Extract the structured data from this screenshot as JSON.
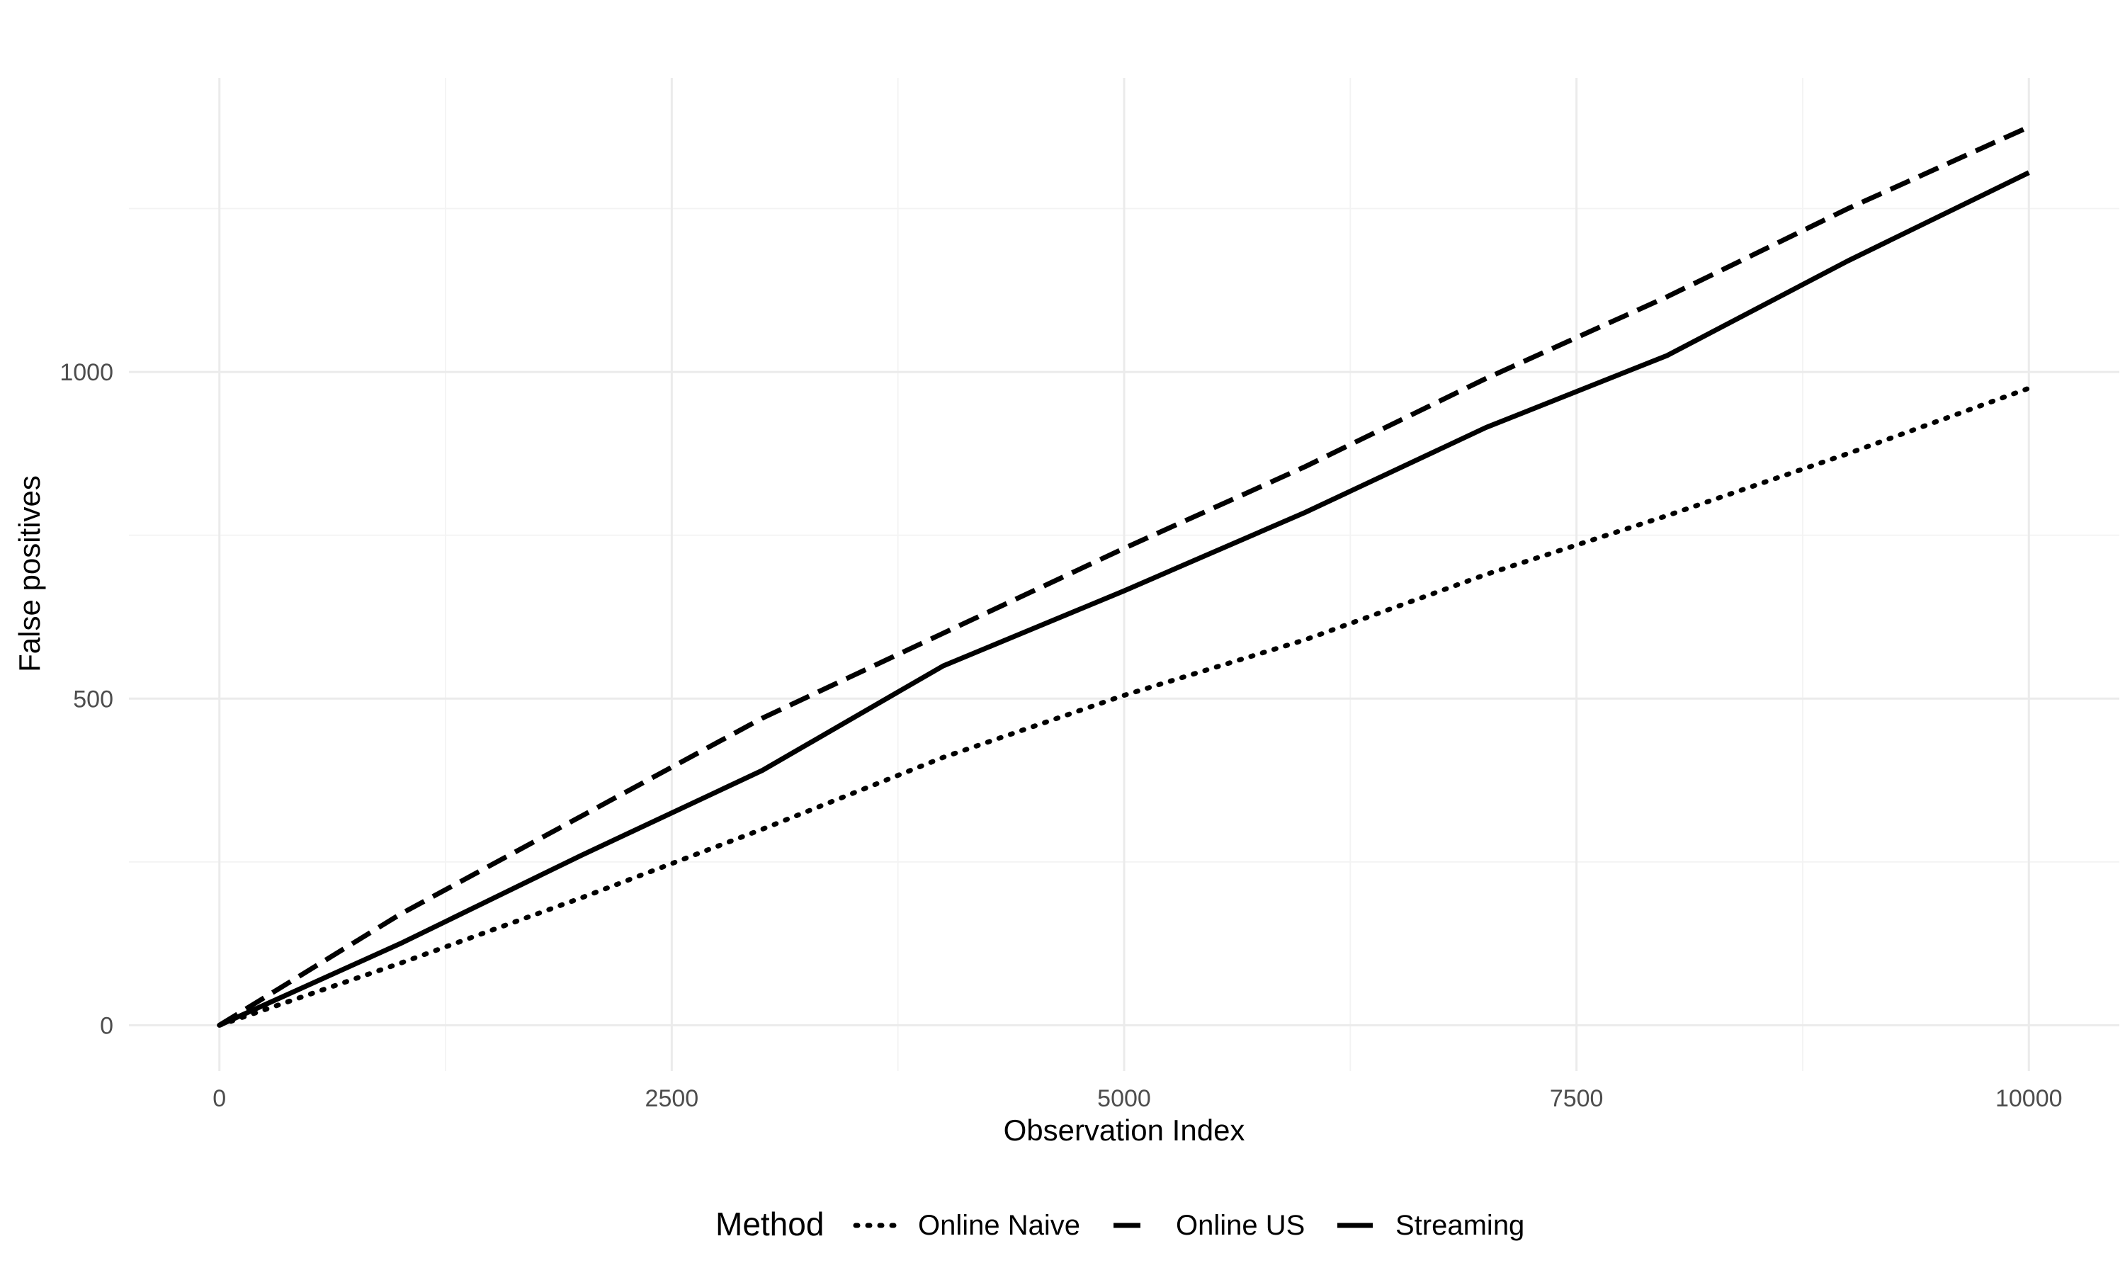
{
  "chart_data": {
    "type": "line",
    "title": "",
    "xlabel": "Observation Index",
    "ylabel": "False positives",
    "xlim": [
      -500,
      10500
    ],
    "ylim": [
      -70,
      1450
    ],
    "x_ticks": [
      0,
      2500,
      5000,
      7500,
      10000
    ],
    "y_ticks": [
      0,
      500,
      1000
    ],
    "grid": true,
    "legend": {
      "title": "Method",
      "position": "bottom"
    },
    "series": [
      {
        "name": "Online Naive",
        "linetype": "dotted",
        "x": [
          0,
          1000,
          2000,
          3000,
          4000,
          5000,
          6000,
          7000,
          8000,
          9000,
          10000
        ],
        "y": [
          0,
          95,
          195,
          300,
          410,
          505,
          590,
          690,
          780,
          875,
          975
        ]
      },
      {
        "name": "Online US",
        "linetype": "dashed",
        "x": [
          0,
          1000,
          2000,
          3000,
          4000,
          5000,
          6000,
          7000,
          8000,
          9000,
          10000
        ],
        "y": [
          0,
          170,
          320,
          470,
          600,
          730,
          855,
          990,
          1115,
          1250,
          1375
        ]
      },
      {
        "name": "Streaming",
        "linetype": "solid",
        "x": [
          0,
          1000,
          2000,
          3000,
          4000,
          5000,
          6000,
          7000,
          8000,
          9000,
          10000
        ],
        "y": [
          0,
          125,
          260,
          390,
          550,
          665,
          785,
          915,
          1025,
          1170,
          1305
        ]
      }
    ]
  }
}
